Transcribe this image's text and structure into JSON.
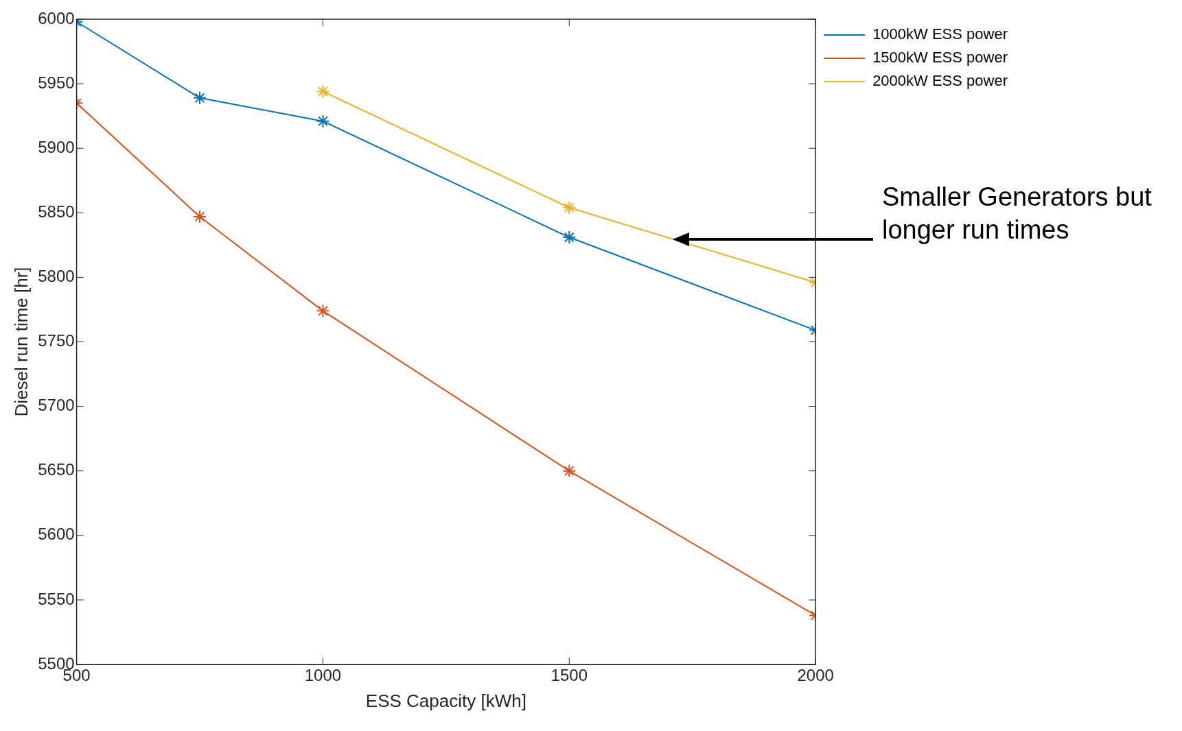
{
  "chart_data": {
    "type": "line",
    "xlabel": "ESS Capacity [kWh]",
    "ylabel": "Diesel run time [hr]",
    "x": [
      500,
      750,
      1000,
      1500,
      2000
    ],
    "series": [
      {
        "name": "1000kW ESS power",
        "color": "#0072bd",
        "values": [
          5998,
          5939,
          5921,
          5831,
          5759
        ]
      },
      {
        "name": "1500kW ESS power",
        "color": "#d95319",
        "values": [
          5935,
          5847,
          5774,
          5650,
          5538
        ]
      },
      {
        "name": "2000kW ESS power",
        "color": "#edb120",
        "values": [
          null,
          null,
          5944,
          5854,
          5796
        ]
      }
    ],
    "xlim": [
      500,
      2000
    ],
    "xticks": [
      500,
      1000,
      1500,
      2000
    ],
    "ylim": [
      5500,
      6000
    ],
    "yticks": [
      5500,
      5550,
      5600,
      5650,
      5700,
      5750,
      5800,
      5850,
      5900,
      5950,
      6000
    ],
    "grid": false,
    "legend": "top right",
    "marker": "cross",
    "line_style": "solid",
    "annotations": [
      "Smaller Generators but longer run times"
    ]
  }
}
